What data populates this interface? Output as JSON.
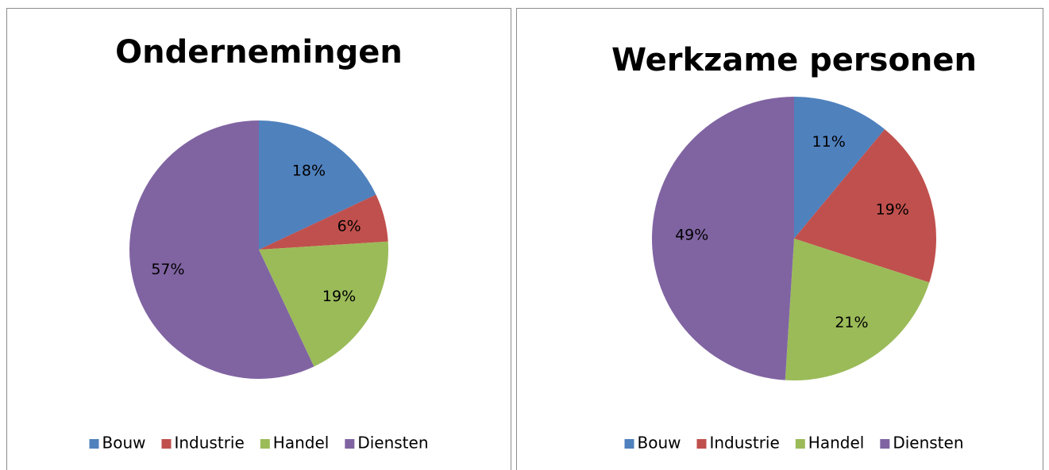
{
  "chart_data": [
    {
      "type": "pie",
      "title": "Ondernemingen",
      "categories": [
        "Bouw",
        "Industrie",
        "Handel",
        "Diensten"
      ],
      "values": [
        18,
        6,
        19,
        57
      ],
      "value_labels": [
        "18%",
        "6%",
        "19%",
        "57%"
      ],
      "colors": [
        "#4f81bd",
        "#c0504d",
        "#9bbb59",
        "#8064a2"
      ],
      "legend": "bottom"
    },
    {
      "type": "pie",
      "title": "Werkzame personen",
      "categories": [
        "Bouw",
        "Industrie",
        "Handel",
        "Diensten"
      ],
      "values": [
        11,
        19,
        21,
        49
      ],
      "value_labels": [
        "11%",
        "19%",
        "21%",
        "49%"
      ],
      "colors": [
        "#4f81bd",
        "#c0504d",
        "#9bbb59",
        "#8064a2"
      ],
      "legend": "bottom"
    }
  ]
}
